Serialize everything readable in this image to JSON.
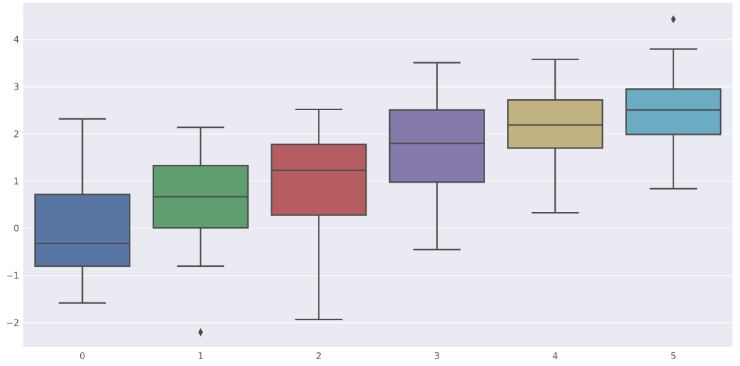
{
  "chart_data": {
    "type": "boxplot",
    "title": "",
    "xlabel": "",
    "ylabel": "",
    "categories": [
      "0",
      "1",
      "2",
      "3",
      "4",
      "5"
    ],
    "yticks": [
      -2,
      -1,
      0,
      1,
      2,
      3,
      4
    ],
    "ytick_labels": [
      "−2",
      "−1",
      "0",
      "1",
      "2",
      "3",
      "4"
    ],
    "ylim": [
      -2.51,
      4.78
    ],
    "grid": true,
    "background": "#eaeaf2",
    "grid_color": "#ffffff",
    "line_color": "#4d4d4d",
    "series": [
      {
        "category": "0",
        "color": "#5875a4",
        "whisker_low": -1.58,
        "q1": -0.8,
        "median": -0.32,
        "q3": 0.72,
        "whisker_high": 2.32,
        "outliers": []
      },
      {
        "category": "1",
        "color": "#5f9e6e",
        "whisker_low": -0.8,
        "q1": 0.01,
        "median": 0.67,
        "q3": 1.33,
        "whisker_high": 2.14,
        "outliers": [
          -2.2
        ]
      },
      {
        "category": "2",
        "color": "#b55d60",
        "whisker_low": -1.93,
        "q1": 0.28,
        "median": 1.23,
        "q3": 1.78,
        "whisker_high": 2.52,
        "outliers": []
      },
      {
        "category": "3",
        "color": "#857aab",
        "whisker_low": -0.45,
        "q1": 0.98,
        "median": 1.8,
        "q3": 2.51,
        "whisker_high": 3.51,
        "outliers": []
      },
      {
        "category": "4",
        "color": "#c1b37f",
        "whisker_low": 0.33,
        "q1": 1.7,
        "median": 2.19,
        "q3": 2.72,
        "whisker_high": 3.58,
        "outliers": []
      },
      {
        "category": "5",
        "color": "#6bacc2",
        "whisker_low": 0.84,
        "q1": 1.99,
        "median": 2.51,
        "q3": 2.95,
        "whisker_high": 3.8,
        "outliers": [
          4.43
        ]
      }
    ]
  }
}
